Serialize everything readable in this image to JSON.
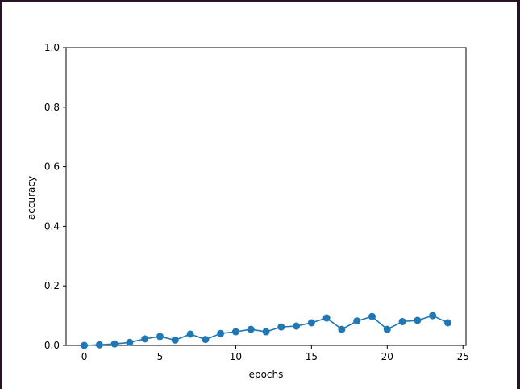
{
  "chart_data": {
    "type": "line",
    "xlabel": "epochs",
    "ylabel": "accuracy",
    "xlim": [
      -1.2,
      25.2
    ],
    "ylim": [
      0.0,
      1.0
    ],
    "xticks": [
      0,
      5,
      10,
      15,
      20,
      25
    ],
    "yticks": [
      0.0,
      0.2,
      0.4,
      0.6,
      0.8,
      1.0
    ],
    "xtick_labels": [
      "0",
      "5",
      "10",
      "15",
      "20",
      "25"
    ],
    "ytick_labels": [
      "0.0",
      "0.2",
      "0.4",
      "0.6",
      "0.8",
      "1.0"
    ],
    "grid": false,
    "legend": "none",
    "series": [
      {
        "color": "#1f77b4",
        "marker": "circle",
        "x": [
          0,
          1,
          2,
          3,
          4,
          5,
          6,
          7,
          8,
          9,
          10,
          11,
          12,
          13,
          14,
          15,
          16,
          17,
          18,
          19,
          20,
          21,
          22,
          23,
          24
        ],
        "y": [
          0.0,
          0.002,
          0.005,
          0.01,
          0.022,
          0.03,
          0.018,
          0.038,
          0.02,
          0.04,
          0.046,
          0.054,
          0.046,
          0.062,
          0.065,
          0.076,
          0.092,
          0.054,
          0.082,
          0.097,
          0.054,
          0.08,
          0.084,
          0.1,
          0.076
        ]
      }
    ]
  }
}
